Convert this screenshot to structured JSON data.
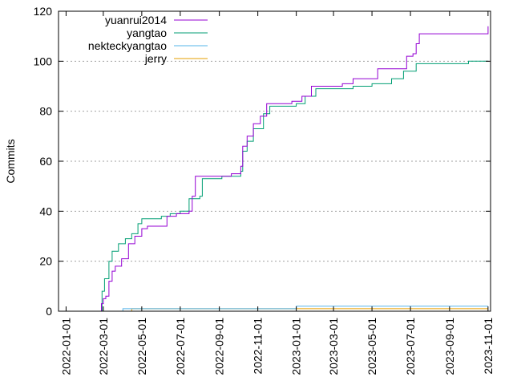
{
  "chart_data": {
    "type": "line",
    "title": "",
    "xlabel": "",
    "ylabel": "Commits",
    "ylim": [
      0,
      120
    ],
    "yticks": [
      0,
      20,
      40,
      60,
      80,
      100,
      120
    ],
    "xlim": [
      "2021-12-20",
      "2023-11-05"
    ],
    "xtick_labels": [
      "2022-01-01",
      "2022-03-01",
      "2022-05-01",
      "2022-07-01",
      "2022-09-01",
      "2022-11-01",
      "2023-01-01",
      "2023-03-01",
      "2023-05-01",
      "2023-07-01",
      "2023-09-01",
      "2023-11-01"
    ],
    "grid": true,
    "legend_position": "top-left",
    "series": [
      {
        "name": "yuanrui2014",
        "color": "#9400d3",
        "points": [
          [
            "2022-02-25",
            0
          ],
          [
            "2022-02-26",
            3
          ],
          [
            "2022-03-01",
            5
          ],
          [
            "2022-03-05",
            6
          ],
          [
            "2022-03-10",
            12
          ],
          [
            "2022-03-15",
            16
          ],
          [
            "2022-03-20",
            18
          ],
          [
            "2022-03-30",
            21
          ],
          [
            "2022-04-10",
            27
          ],
          [
            "2022-04-20",
            30
          ],
          [
            "2022-05-01",
            33
          ],
          [
            "2022-05-10",
            34
          ],
          [
            "2022-05-25",
            34
          ],
          [
            "2022-06-10",
            38
          ],
          [
            "2022-06-25",
            39
          ],
          [
            "2022-07-15",
            40
          ],
          [
            "2022-07-20",
            46
          ],
          [
            "2022-07-25",
            54
          ],
          [
            "2022-08-20",
            54
          ],
          [
            "2022-09-10",
            54
          ],
          [
            "2022-09-20",
            55
          ],
          [
            "2022-10-05",
            58
          ],
          [
            "2022-10-08",
            66
          ],
          [
            "2022-10-15",
            70
          ],
          [
            "2022-10-25",
            75
          ],
          [
            "2022-11-05",
            78
          ],
          [
            "2022-11-15",
            83
          ],
          [
            "2022-12-01",
            83
          ],
          [
            "2022-12-25",
            84
          ],
          [
            "2023-01-10",
            86
          ],
          [
            "2023-01-25",
            90
          ],
          [
            "2023-02-15",
            90
          ],
          [
            "2023-03-15",
            91
          ],
          [
            "2023-04-01",
            93
          ],
          [
            "2023-05-05",
            93
          ],
          [
            "2023-05-10",
            97
          ],
          [
            "2023-06-20",
            97
          ],
          [
            "2023-06-25",
            102
          ],
          [
            "2023-07-05",
            103
          ],
          [
            "2023-07-10",
            107
          ],
          [
            "2023-07-15",
            111
          ],
          [
            "2023-10-30",
            111
          ],
          [
            "2023-11-01",
            114
          ]
        ]
      },
      {
        "name": "yangtao",
        "color": "#009e73",
        "points": [
          [
            "2022-02-25",
            0
          ],
          [
            "2022-02-27",
            8
          ],
          [
            "2022-03-03",
            13
          ],
          [
            "2022-03-10",
            20
          ],
          [
            "2022-03-15",
            24
          ],
          [
            "2022-03-25",
            27
          ],
          [
            "2022-04-05",
            29
          ],
          [
            "2022-04-15",
            31
          ],
          [
            "2022-04-25",
            35
          ],
          [
            "2022-05-01",
            37
          ],
          [
            "2022-05-20",
            37
          ],
          [
            "2022-06-01",
            38
          ],
          [
            "2022-06-15",
            39
          ],
          [
            "2022-07-01",
            40
          ],
          [
            "2022-07-15",
            45
          ],
          [
            "2022-08-01",
            46
          ],
          [
            "2022-08-05",
            53
          ],
          [
            "2022-09-05",
            54
          ],
          [
            "2022-09-20",
            54
          ],
          [
            "2022-10-05",
            56
          ],
          [
            "2022-10-08",
            64
          ],
          [
            "2022-10-15",
            68
          ],
          [
            "2022-10-25",
            73
          ],
          [
            "2022-11-10",
            79
          ],
          [
            "2022-11-20",
            82
          ],
          [
            "2022-12-10",
            82
          ],
          [
            "2023-01-01",
            83
          ],
          [
            "2023-01-15",
            86
          ],
          [
            "2023-02-01",
            89
          ],
          [
            "2023-03-01",
            89
          ],
          [
            "2023-04-01",
            90
          ],
          [
            "2023-05-01",
            91
          ],
          [
            "2023-06-01",
            93
          ],
          [
            "2023-06-20",
            96
          ],
          [
            "2023-07-10",
            99
          ],
          [
            "2023-08-20",
            99
          ],
          [
            "2023-10-01",
            100
          ],
          [
            "2023-11-01",
            100
          ]
        ]
      },
      {
        "name": "nekteckyangtao",
        "color": "#56b4e9",
        "points": [
          [
            "2022-04-01",
            0
          ],
          [
            "2022-04-01",
            1
          ],
          [
            "2022-12-20",
            1
          ],
          [
            "2023-01-01",
            2
          ],
          [
            "2023-11-01",
            2
          ]
        ]
      },
      {
        "name": "jerry",
        "color": "#e69f00",
        "points": [
          [
            "2022-04-01",
            0
          ],
          [
            "2022-04-15",
            1
          ],
          [
            "2023-11-01",
            1
          ]
        ]
      }
    ]
  }
}
